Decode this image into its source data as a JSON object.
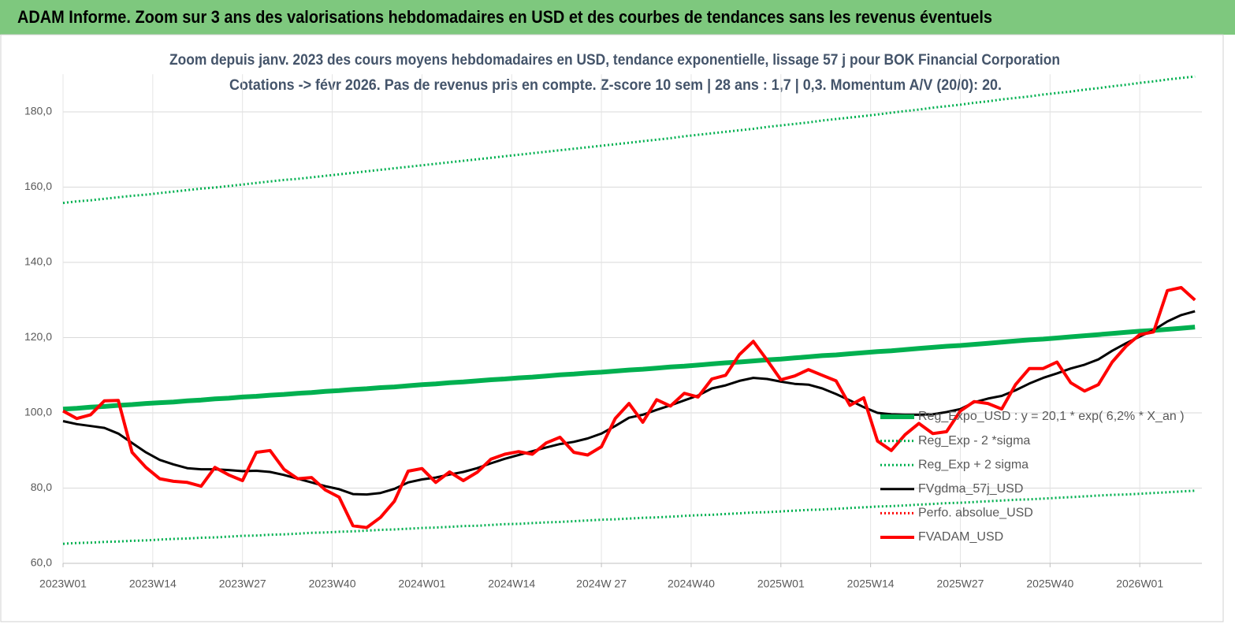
{
  "header": {
    "title": "ADAM Informe. Zoom sur 3 ans des valorisations hebdomadaires en USD et des courbes de tendances sans les revenus éventuels"
  },
  "chart_data": {
    "type": "line",
    "title": "Zoom depuis janv. 2023 des cours moyens hebdomadaires en USD, tendance exponentielle, lissage 57 j pour BOK Financial Corporation",
    "subtitle": "Cotations -> févr 2026.  Pas de revenus pris en compte. Z-score 10 sem  | 28 ans : 1,7 | 0,3. Momentum A/V (20/0): 20.",
    "x": [
      0,
      2,
      4,
      6,
      8,
      10,
      12,
      14,
      16,
      18,
      20,
      22,
      24,
      26,
      28,
      30,
      32,
      34,
      36,
      38,
      40,
      42,
      44,
      46,
      48,
      50,
      52,
      54,
      56,
      58,
      60,
      62,
      64,
      66,
      68,
      70,
      72,
      74,
      76,
      78,
      80,
      82,
      84,
      86,
      88,
      90,
      92,
      94,
      96,
      98,
      100,
      102,
      104,
      106,
      108,
      110,
      112,
      114,
      116,
      118,
      120,
      122,
      124,
      126,
      128,
      130,
      132,
      134,
      136,
      138,
      140,
      142,
      144,
      146,
      148,
      150,
      152,
      154,
      156,
      158,
      160,
      162,
      164
    ],
    "xlim": [
      0,
      165
    ],
    "xticks": [
      {
        "value": 0,
        "label": "2023W01"
      },
      {
        "value": 13,
        "label": "2023W14"
      },
      {
        "value": 26,
        "label": "2023W27"
      },
      {
        "value": 39,
        "label": "2023W40"
      },
      {
        "value": 52,
        "label": "2024W01"
      },
      {
        "value": 65,
        "label": "2024W14"
      },
      {
        "value": 78,
        "label": "2024W 27"
      },
      {
        "value": 91,
        "label": "2024W40"
      },
      {
        "value": 104,
        "label": "2025W01"
      },
      {
        "value": 117,
        "label": "2025W14"
      },
      {
        "value": 130,
        "label": "2025W27"
      },
      {
        "value": 143,
        "label": "2025W40"
      },
      {
        "value": 156,
        "label": "2026W01"
      }
    ],
    "ylim": [
      60,
      190
    ],
    "yticks": [
      {
        "value": 60,
        "label": "60,0"
      },
      {
        "value": 80,
        "label": "80,0"
      },
      {
        "value": 100,
        "label": "100,0"
      },
      {
        "value": 120,
        "label": "120,0"
      },
      {
        "value": 140,
        "label": "140,0"
      },
      {
        "value": 160,
        "label": "160,0"
      },
      {
        "value": 180,
        "label": "180,0"
      }
    ],
    "grid": true,
    "series": [
      {
        "name": "Reg_Expo_USD : y = 20,1 * exp( 6,2% *  X_an )",
        "color": "#00b050",
        "style": "thick",
        "values": [
          101.0,
          101.2,
          101.5,
          101.7,
          102.0,
          102.2,
          102.5,
          102.7,
          102.9,
          103.2,
          103.4,
          103.7,
          103.9,
          104.2,
          104.4,
          104.7,
          104.9,
          105.2,
          105.4,
          105.7,
          105.9,
          106.2,
          106.4,
          106.7,
          106.9,
          107.2,
          107.5,
          107.7,
          108.0,
          108.2,
          108.5,
          108.8,
          109.0,
          109.3,
          109.5,
          109.8,
          110.1,
          110.3,
          110.6,
          110.8,
          111.1,
          111.4,
          111.6,
          111.9,
          112.2,
          112.4,
          112.7,
          113.0,
          113.3,
          113.5,
          113.8,
          114.1,
          114.3,
          114.6,
          114.9,
          115.2,
          115.4,
          115.7,
          116.0,
          116.3,
          116.5,
          116.8,
          117.1,
          117.4,
          117.7,
          117.9,
          118.2,
          118.5,
          118.8,
          119.1,
          119.4,
          119.6,
          119.9,
          120.2,
          120.5,
          120.8,
          121.1,
          121.4,
          121.7,
          121.9,
          122.2,
          122.5,
          122.8
        ]
      },
      {
        "name": "Reg_Exp - 2 *sigma",
        "color": "#00b050",
        "style": "dotted",
        "values": [
          65.2,
          65.4,
          65.5,
          65.7,
          65.8,
          66.0,
          66.1,
          66.3,
          66.5,
          66.6,
          66.8,
          66.9,
          67.1,
          67.3,
          67.4,
          67.6,
          67.7,
          67.9,
          68.1,
          68.2,
          68.4,
          68.5,
          68.7,
          68.9,
          69.0,
          69.2,
          69.4,
          69.5,
          69.7,
          69.9,
          70.0,
          70.2,
          70.4,
          70.5,
          70.7,
          70.9,
          71.0,
          71.2,
          71.4,
          71.6,
          71.7,
          71.9,
          72.1,
          72.2,
          72.4,
          72.6,
          72.8,
          72.9,
          73.1,
          73.3,
          73.5,
          73.6,
          73.8,
          74.0,
          74.2,
          74.3,
          74.5,
          74.7,
          74.9,
          75.1,
          75.2,
          75.4,
          75.6,
          75.8,
          76.0,
          76.1,
          76.3,
          76.5,
          76.7,
          76.9,
          77.0,
          77.2,
          77.4,
          77.6,
          77.8,
          78.0,
          78.2,
          78.3,
          78.5,
          78.7,
          78.9,
          79.1,
          79.3
        ]
      },
      {
        "name": "Reg_Exp + 2 sigma",
        "color": "#00b050",
        "style": "dotted",
        "values": [
          155.8,
          156.2,
          156.5,
          156.9,
          157.3,
          157.7,
          158.0,
          158.4,
          158.8,
          159.2,
          159.6,
          159.9,
          160.3,
          160.7,
          161.1,
          161.5,
          161.9,
          162.2,
          162.6,
          163.0,
          163.4,
          163.8,
          164.2,
          164.6,
          165.0,
          165.4,
          165.8,
          166.2,
          166.6,
          167.0,
          167.4,
          167.8,
          168.2,
          168.6,
          169.0,
          169.4,
          169.8,
          170.2,
          170.6,
          171.0,
          171.4,
          171.8,
          172.2,
          172.6,
          173.0,
          173.5,
          173.9,
          174.3,
          174.7,
          175.1,
          175.5,
          176.0,
          176.4,
          176.8,
          177.2,
          177.7,
          178.1,
          178.5,
          178.9,
          179.3,
          179.8,
          180.2,
          180.6,
          181.1,
          181.5,
          181.9,
          182.4,
          182.8,
          183.3,
          183.7,
          184.1,
          184.6,
          185.0,
          185.4,
          185.9,
          186.3,
          186.8,
          187.2,
          187.7,
          188.1,
          188.6,
          189.0,
          189.4
        ]
      },
      {
        "name": "FVgdma_57j_USD",
        "color": "#000000",
        "style": "solid",
        "values": [
          97.8,
          97.0,
          96.5,
          96.0,
          94.5,
          92.0,
          89.5,
          87.5,
          86.3,
          85.3,
          85.0,
          85.0,
          84.8,
          84.5,
          84.6,
          84.3,
          83.5,
          82.5,
          81.5,
          80.5,
          79.7,
          78.4,
          78.3,
          78.7,
          79.8,
          81.5,
          82.3,
          82.8,
          83.6,
          84.3,
          85.3,
          86.6,
          87.8,
          88.8,
          89.8,
          90.8,
          91.7,
          92.3,
          93.2,
          94.5,
          96.5,
          98.7,
          99.5,
          100.8,
          102.0,
          103.3,
          104.6,
          106.5,
          107.3,
          108.5,
          109.3,
          109.0,
          108.3,
          107.7,
          107.5,
          106.5,
          105.0,
          103.3,
          101.5,
          100.0,
          99.6,
          99.5,
          99.5,
          99.6,
          100.2,
          101.0,
          102.8,
          103.8,
          104.5,
          106.0,
          107.8,
          109.3,
          110.5,
          111.8,
          112.8,
          114.2,
          116.5,
          118.5,
          120.3,
          122.0,
          124.3,
          126.0,
          127.0
        ]
      },
      {
        "name": "Perfo. absolue_USD",
        "color": "#ff0000",
        "style": "dotted",
        "values": [
          null,
          null,
          null,
          null,
          null,
          null,
          null,
          null,
          null,
          null,
          null,
          null,
          null,
          null,
          null,
          null,
          null,
          null,
          null,
          null,
          null,
          null,
          null,
          null,
          null,
          null,
          null,
          null,
          null,
          null,
          null,
          null,
          null,
          null,
          null,
          null,
          null,
          null,
          null,
          null,
          null,
          null,
          null,
          null,
          null,
          null,
          null,
          null,
          null,
          null,
          null,
          null,
          null,
          null,
          null,
          null,
          null,
          null,
          null,
          null,
          null,
          null,
          null,
          null,
          null,
          null,
          null,
          null,
          null,
          null,
          null,
          null,
          null,
          null,
          null,
          null,
          null,
          null,
          null,
          null,
          null,
          null,
          null
        ]
      },
      {
        "name": "FVADAM_USD",
        "color": "#ff0000",
        "style": "bold",
        "values": [
          100.5,
          98.5,
          99.5,
          103.2,
          103.3,
          89.5,
          85.5,
          82.5,
          81.8,
          81.5,
          80.5,
          85.5,
          83.5,
          82.0,
          89.5,
          90.0,
          85.0,
          82.5,
          82.8,
          79.5,
          77.6,
          70.0,
          69.5,
          72.2,
          76.5,
          84.5,
          85.2,
          81.5,
          84.3,
          82.0,
          84.2,
          87.7,
          89.0,
          89.7,
          89.0,
          92.0,
          93.5,
          89.5,
          88.8,
          91.0,
          98.5,
          102.5,
          97.5,
          103.5,
          101.8,
          105.2,
          104.2,
          109.0,
          110.0,
          115.5,
          119.0,
          114.0,
          108.8,
          109.8,
          111.5,
          110.0,
          108.5,
          102.0,
          104.0,
          92.5,
          90.0,
          94.2,
          97.2,
          94.5,
          95.0,
          100.5,
          103.0,
          102.5,
          101.0,
          107.5,
          111.8,
          111.8,
          113.5,
          108.0,
          105.8,
          107.5,
          113.5,
          117.7,
          120.8,
          121.5,
          132.5,
          133.3,
          130.0
        ]
      }
    ]
  }
}
